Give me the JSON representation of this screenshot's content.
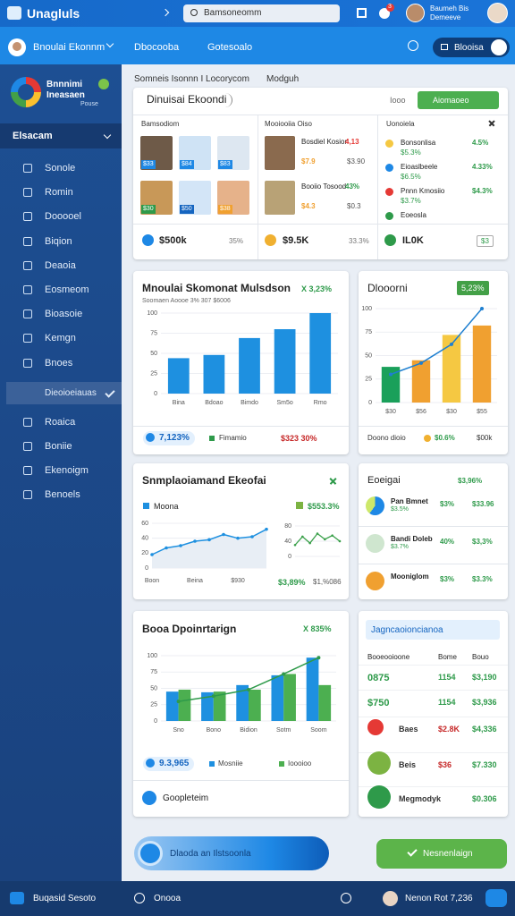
{
  "topbar": {
    "logo": "Unagluls",
    "search": "Bamsoneomm",
    "notifications": "3",
    "user_name": "Baumeh Bis",
    "user_role": "Demeeve"
  },
  "navbar": {
    "workspace": "Bnoulai Ekonnm",
    "links": [
      "Dbocooba",
      "Gotesoalo"
    ],
    "button": "Blooisa"
  },
  "sidebar": {
    "brand": "Bnnnimi Ineasaen",
    "brand_sub": "Pouse",
    "section": "Elsacam",
    "items": [
      "Sonole",
      "Romin",
      "Dooooel",
      "Biqion",
      "Deaoia",
      "Eosmeom",
      "Bioasoie",
      "Kemgn",
      "Bnoes"
    ],
    "group": "Dieoioeiauas",
    "items2": [
      "Roaica",
      "Boniie",
      "Ekenoigm",
      "Benoels"
    ]
  },
  "breadcrumb": {
    "path": "Somneis Isonnn I Locorycom",
    "tab": "Modguh"
  },
  "overview": {
    "title": "Dinuisai Ekoondi",
    "tag": "Iooo",
    "button": "Aiomaoeo",
    "col1": {
      "title": "Bamsodiom",
      "tiles": [
        "$33",
        "$84",
        "$83",
        "$30",
        "$50",
        "$38"
      ],
      "total": "$500k",
      "change": "35%"
    },
    "col2": {
      "title": "Mooiooiia Oiso",
      "rows": [
        {
          "name": "Bosdiel Kosion",
          "value": "4,13",
          "sub": "$7.9",
          "extra": "$3.90"
        },
        {
          "name": "Booiio Tosood",
          "value": "43%",
          "sub": "$4.3",
          "extra": "$0.3"
        }
      ],
      "total": "$9.5K",
      "change": "33.3%"
    },
    "col3": {
      "title": "Uonoiela",
      "rows": [
        {
          "name": "Bonsonlisa",
          "value": "4.5%",
          "sub": "$5.3%"
        },
        {
          "name": "Eioaslbeele",
          "value": "4.33%",
          "sub": "$6.5%"
        },
        {
          "name": "Pnnn Kmosiio",
          "value": "$4.3%",
          "sub": "$3.7%"
        },
        {
          "name": "Eoeosla"
        }
      ],
      "total": "IL0K",
      "change": "$3"
    }
  },
  "sales_chart": {
    "type": "bar",
    "title": "Mnoulai Skomonat Mulsdson",
    "badge": "X 3,23%",
    "subtitle": "Soomaen Aoooe 3% 307 $6006",
    "categories": [
      "Bina",
      "Bdoao",
      "Bimdo",
      "Sm5o",
      "Rmo"
    ],
    "values": [
      44,
      48,
      69,
      80,
      100
    ],
    "color": "#1e90e0",
    "ylim": [
      0,
      100
    ],
    "yticks": [
      0,
      25,
      50,
      75,
      100
    ],
    "footer": {
      "value": "7,123%",
      "legend": "Fimamio",
      "change": "$323 30%"
    }
  },
  "combo_chart": {
    "type": "bar",
    "title": "Dlooorni",
    "badge": "5,23%",
    "categories": [
      "$30",
      "$56",
      "$30",
      "$55"
    ],
    "values": [
      38,
      45,
      72,
      82
    ],
    "colors": [
      "#1aa05a",
      "#f0a030",
      "#f5c842",
      "#f0a030"
    ],
    "line": [
      30,
      42,
      62,
      100
    ],
    "line_color": "#1e7fd0",
    "ylim": [
      0,
      100
    ],
    "yticks": [
      0,
      25,
      50,
      75,
      100
    ],
    "footer": {
      "label": "Doono dioio",
      "change": "$0.6%",
      "value": "$00k"
    }
  },
  "trend_chart": {
    "type": "line",
    "title": "Snmplaoiamand Ekeofai",
    "legend": "Moona",
    "value": "$553.3%",
    "categories": [
      "Boon",
      null,
      null,
      "Beina",
      null,
      null,
      "$930",
      null,
      null
    ],
    "values": [
      18,
      27,
      30,
      36,
      38,
      45,
      40,
      42,
      52
    ],
    "color": "#1e90e0",
    "ylim": [
      0,
      60
    ],
    "yticks": [
      0,
      20,
      40,
      60
    ],
    "spark": {
      "values": [
        30,
        52,
        35,
        60,
        45,
        55,
        40
      ],
      "color": "#3aa04a",
      "ylim": [
        0,
        80
      ],
      "yticks": [
        0,
        40,
        80
      ]
    },
    "footer": {
      "left": "$3,89%",
      "right": "$1,%086"
    }
  },
  "segments": {
    "title": "Eoeigai",
    "trend": "$3,96%",
    "rows": [
      {
        "name": "Pan Bmnet",
        "sub": "$3.5%",
        "pct": "$3%",
        "value": "$33.96"
      },
      {
        "name": "Bandi Doleb",
        "sub": "$3.7%",
        "pct": "40%",
        "value": "$3,3%"
      },
      {
        "name": "Mooniglom",
        "pct": "$3%",
        "value": "$3.3%"
      }
    ]
  },
  "bars_chart": {
    "type": "bar",
    "title": "Booa Dpoinrtarign",
    "badge": "X 835%",
    "categories": [
      "Sno",
      "Bono",
      "Bidion",
      "Sotm",
      "Soom"
    ],
    "series": [
      {
        "name": "Mosniie",
        "color": "#1e90e0",
        "values": [
          45,
          44,
          55,
          70,
          97
        ]
      },
      {
        "name": "Ioooioo",
        "color": "#4caf50",
        "values": [
          48,
          45,
          48,
          72,
          55
        ]
      }
    ],
    "line": [
      30,
      38,
      48,
      72,
      97
    ],
    "line_color": "#2e9a4a",
    "ylim": [
      0,
      100
    ],
    "yticks": [
      0,
      25,
      50,
      75,
      100
    ],
    "footer": {
      "value": "9.3,965",
      "link": "Goopleteim"
    }
  },
  "table": {
    "title": "Jagncaoioncianoa",
    "columns": [
      "Booeooioone",
      "Bome",
      "Bouo"
    ],
    "rows": [
      [
        "0875",
        "1154",
        "$3,190"
      ],
      [
        "$750",
        "1154",
        "$3,936"
      ],
      [
        "Baes",
        "$2.8K",
        "$4,336"
      ],
      [
        "Beis",
        "$36",
        "$7.330"
      ],
      [
        "Megmodyk",
        "$0.306"
      ]
    ]
  },
  "banner": {
    "text": "Dlaoda an Ilstsoonla",
    "button": "Nesnenlaign"
  },
  "footer": {
    "left": "Buqasid Sesoto",
    "center": "Onooa",
    "right": "Nenon Rot 7,236"
  }
}
